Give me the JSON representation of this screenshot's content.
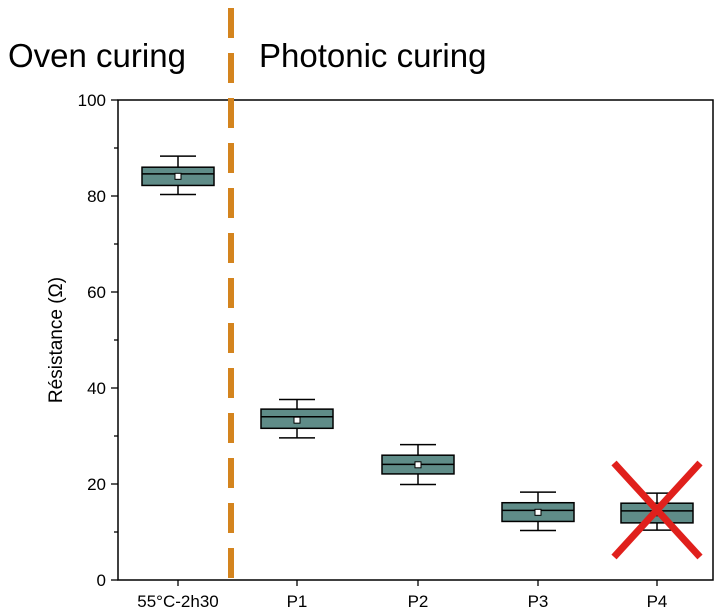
{
  "chart_data": {
    "type": "box",
    "title": "",
    "xlabel": "",
    "ylabel": "Résistance (Ω)",
    "ylim": [
      0,
      100
    ],
    "yticks": [
      0,
      20,
      40,
      60,
      80,
      100
    ],
    "grid": false,
    "legend": "none",
    "categories": [
      "55°C-2h30",
      "P1",
      "P2",
      "P3",
      "P4"
    ],
    "boxes": [
      {
        "category": "55°C-2h30",
        "whisker_low": 80.3,
        "q1": 82.2,
        "median": 84.6,
        "mean": 84.1,
        "q3": 86.0,
        "whisker_high": 88.3
      },
      {
        "category": "P1",
        "whisker_low": 29.6,
        "q1": 31.6,
        "median": 34.0,
        "mean": 33.3,
        "q3": 35.6,
        "whisker_high": 37.6
      },
      {
        "category": "P2",
        "whisker_low": 19.9,
        "q1": 22.1,
        "median": 24.1,
        "mean": 24.0,
        "q3": 26.0,
        "whisker_high": 28.2
      },
      {
        "category": "P3",
        "whisker_low": 10.3,
        "q1": 12.2,
        "median": 14.5,
        "mean": 14.1,
        "q3": 16.1,
        "whisker_high": 18.3
      },
      {
        "category": "P4",
        "whisker_low": 10.4,
        "q1": 11.9,
        "median": 14.4,
        "mean": 14.0,
        "q3": 16.0,
        "whisker_high": 18.1
      }
    ],
    "regions": {
      "left_label": "Oven curing",
      "right_label": "Photonic curing",
      "divider_between": [
        "55°C-2h30",
        "P1"
      ]
    },
    "crossed_out": [
      "P4"
    ],
    "colors": {
      "box_fill": "#5f8c88",
      "divider": "#d4841e",
      "cross": "#e0201c",
      "axis": "#000000"
    }
  }
}
